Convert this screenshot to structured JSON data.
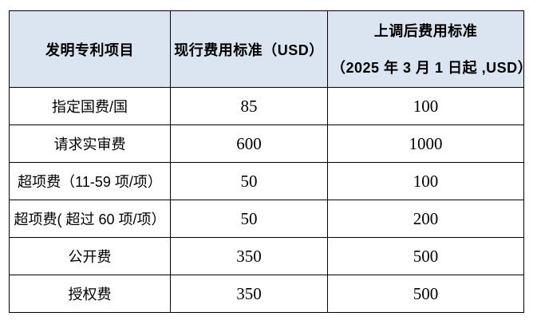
{
  "table": {
    "title_semantic": "patent-fee-schedule",
    "colors": {
      "header_background": "#dbe5f1",
      "border": "#000000",
      "text": "#000000",
      "page_background": "#ffffff"
    },
    "header": {
      "item_column": "发明专利项目",
      "current_fee_column": "现行费用标准（USD）",
      "new_fee_column_line1": "上调后费用标准",
      "new_fee_column_line2": "（2025 年 3 月 1 日起 ,USD）"
    },
    "rows": [
      {
        "item": "指定国费/国",
        "current": "85",
        "new": "100"
      },
      {
        "item": "请求实审费",
        "current": "600",
        "new": "1000"
      },
      {
        "item": "超项费（11-59 项/项）",
        "current": "50",
        "new": "100"
      },
      {
        "item": "超项费( 超过 60 项/项）",
        "current": "50",
        "new": "200"
      },
      {
        "item": "公开费",
        "current": "350",
        "new": "500"
      },
      {
        "item": "授权费",
        "current": "350",
        "new": "500"
      }
    ]
  }
}
